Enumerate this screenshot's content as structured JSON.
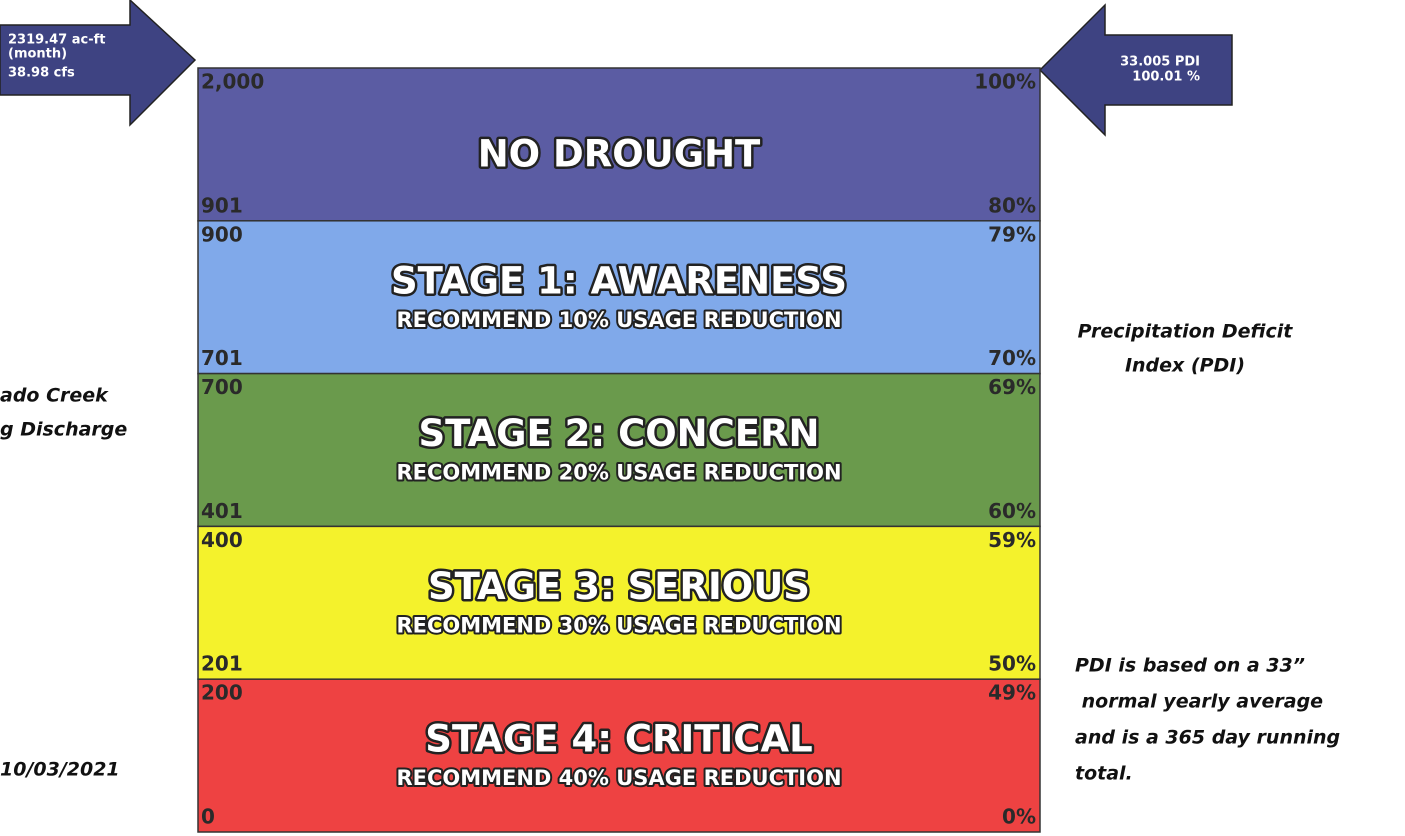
{
  "left_indicator": {
    "lines": [
      "2319.47 ac-ft",
      "(month)",
      "38.98 cfs"
    ]
  },
  "right_indicator": {
    "lines": [
      "33.005 PDI",
      "100.01 %"
    ]
  },
  "left_labels": [
    "ado Creek",
    "g Discharge"
  ],
  "date": "10/03/2021",
  "right_label": [
    "Precipitation Deficit",
    "Index (PDI)"
  ],
  "note": [
    "PDI is based on a 33”",
    " normal yearly average",
    "and is a 365 day running",
    "total."
  ],
  "stages": [
    {
      "title": "NO DROUGHT",
      "color": "#5b5ca3",
      "top_left": "2,000",
      "bottom_left": "901",
      "top_right": "100%",
      "bottom_right": "80%"
    },
    {
      "title": "STAGE 1: AWARENESS",
      "subtitle": "RECOMMEND 10% USAGE REDUCTION",
      "color": "#80a9ea",
      "top_left": "900",
      "bottom_left": "701",
      "top_right": "79%",
      "bottom_right": "70%"
    },
    {
      "title": "STAGE 2: CONCERN",
      "subtitle": "RECOMMEND 20% USAGE REDUCTION",
      "color": "#6a9a4c",
      "top_left": "700",
      "bottom_left": "401",
      "top_right": "69%",
      "bottom_right": "60%"
    },
    {
      "title": "STAGE 3: SERIOUS",
      "subtitle": "RECOMMEND 30% USAGE REDUCTION",
      "color": "#f4f22c",
      "top_left": "400",
      "bottom_left": "201",
      "top_right": "59%",
      "bottom_right": "50%"
    },
    {
      "title": "STAGE 4: CRITICAL",
      "subtitle": "RECOMMEND 40% USAGE REDUCTION",
      "color": "#ee4242",
      "top_left": "200",
      "bottom_left": "0",
      "top_right": "49%",
      "bottom_right": "0%"
    }
  ]
}
